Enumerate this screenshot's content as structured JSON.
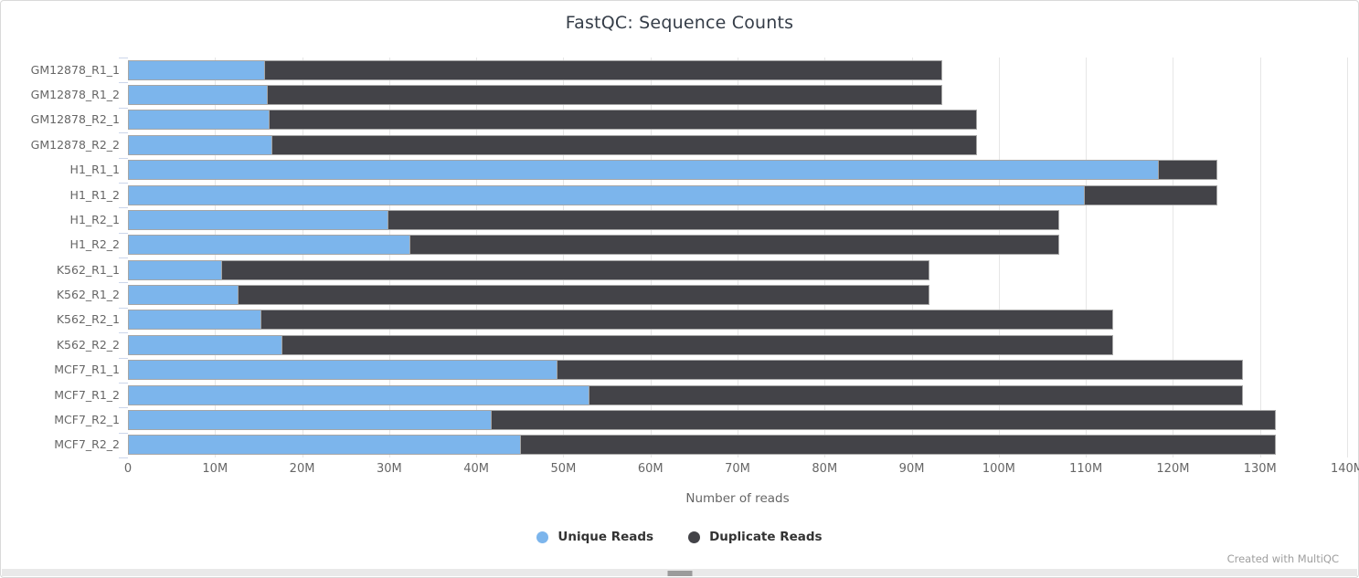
{
  "header": {
    "title": "FastQC: Sequence Counts"
  },
  "axis": {
    "ticks": [
      "0",
      "10M",
      "20M",
      "30M",
      "40M",
      "50M",
      "60M",
      "70M",
      "80M",
      "90M",
      "100M",
      "110M",
      "120M",
      "130M",
      "140M"
    ],
    "xlabel": "Number of reads"
  },
  "legend": {
    "items": [
      {
        "label": "Unique Reads",
        "color": "#7cb5ec"
      },
      {
        "label": "Duplicate Reads",
        "color": "#434348"
      }
    ]
  },
  "footer": {
    "credit": "Created with MultiQC"
  },
  "colors": {
    "unique": "#7cb5ec",
    "duplicate": "#434348",
    "gridline": "#e6e6e6",
    "tick_mark": "#ccd6eb"
  },
  "chart_data": {
    "type": "bar",
    "orientation": "horizontal",
    "stacked": true,
    "title": "FastQC: Sequence Counts",
    "xlabel": "Number of reads",
    "unit": "millions of reads",
    "xlim": [
      0,
      140
    ],
    "grid": true,
    "legend_position": "bottom",
    "categories": [
      "GM12878_R1_1",
      "GM12878_R1_2",
      "GM12878_R2_1",
      "GM12878_R2_2",
      "H1_R1_1",
      "H1_R1_2",
      "H1_R2_1",
      "H1_R2_2",
      "K562_R1_1",
      "K562_R1_2",
      "K562_R2_1",
      "K562_R2_2",
      "MCF7_R1_1",
      "MCF7_R1_2",
      "MCF7_R2_1",
      "MCF7_R2_2"
    ],
    "series": [
      {
        "name": "Unique Reads",
        "color": "#7cb5ec",
        "values": [
          15.7,
          16.1,
          16.3,
          16.6,
          118.4,
          109.9,
          29.9,
          32.4,
          10.8,
          12.7,
          15.3,
          17.7,
          49.3,
          53.0,
          41.8,
          45.1
        ]
      },
      {
        "name": "Duplicate Reads",
        "color": "#434348",
        "values": [
          77.8,
          77.4,
          81.2,
          80.9,
          6.7,
          15.2,
          77.0,
          74.5,
          81.2,
          79.3,
          97.8,
          95.4,
          78.7,
          75.0,
          90.0,
          86.7
        ]
      }
    ],
    "totals": [
      93.5,
      93.5,
      97.5,
      97.5,
      125.1,
      125.1,
      106.9,
      106.9,
      92.0,
      92.0,
      113.1,
      113.1,
      128.0,
      128.0,
      131.8,
      131.8
    ]
  }
}
